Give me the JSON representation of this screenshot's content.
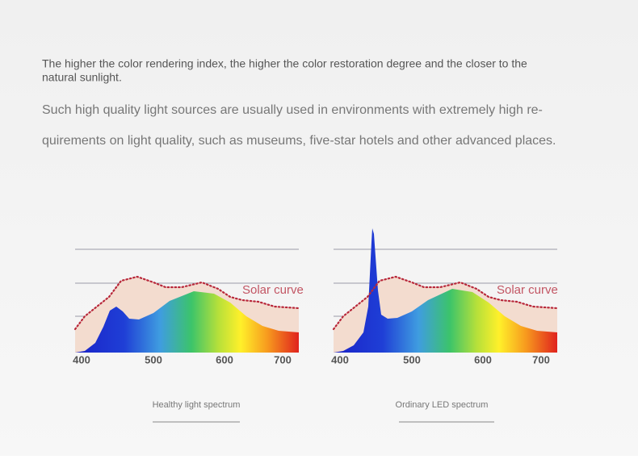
{
  "intro": {
    "lines": [
      "The higher the color rendering index, the higher the color restoration degree and the closer to the",
      "natural sunlight."
    ]
  },
  "detail": {
    "lines": [
      "Such high quality light sources are usually used in environments with extremely high re-",
      "quirements on light quality, such as museums, five-star hotels and other advanced places."
    ]
  },
  "charts": [
    {
      "curve_label": "Solar curve",
      "xticks": [
        "400",
        "500",
        "600",
        "700"
      ],
      "caption": "Healthy light spectrum"
    },
    {
      "curve_label": "Solar curve",
      "xticks": [
        "400",
        "500",
        "600",
        "700"
      ],
      "caption": "Ordinary LED spectrum"
    }
  ]
}
